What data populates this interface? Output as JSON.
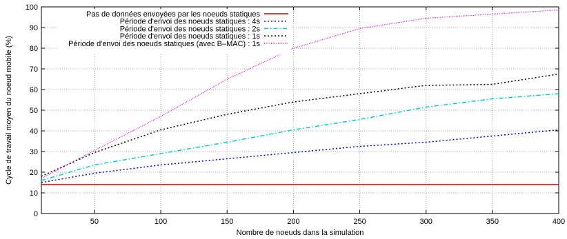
{
  "chart_data": {
    "type": "line",
    "title": "",
    "xlabel": "Nombre de noeuds dans la simulation",
    "ylabel": "Cycle de travail moyen du noeud mobile (%)",
    "xlim": [
      10,
      400
    ],
    "ylim": [
      0,
      100
    ],
    "xticks": [
      50,
      100,
      150,
      200,
      250,
      300,
      350,
      400
    ],
    "yticks": [
      0,
      10,
      20,
      30,
      40,
      50,
      60,
      70,
      80,
      90,
      100
    ],
    "grid": true,
    "legend_position": "top-left",
    "series": [
      {
        "name": "Pas de données envoyées par les noeuds statiques",
        "color": "#cc0000",
        "dash": "solid",
        "x": [
          10,
          400
        ],
        "y": [
          14,
          14
        ]
      },
      {
        "name": "Période d'envoi des noeuds statiques : 4s",
        "color": "#0000cc",
        "dash": "dotted",
        "x": [
          10,
          50,
          100,
          150,
          200,
          250,
          300,
          350,
          400
        ],
        "y": [
          15,
          19.5,
          23.5,
          26.5,
          29.5,
          32.5,
          34.5,
          37.5,
          40.5
        ]
      },
      {
        "name": "Période d'envoi des noeuds statiques : 2s",
        "color": "#00cccc",
        "dash": "dashdot",
        "x": [
          10,
          50,
          100,
          150,
          200,
          250,
          300,
          350,
          400
        ],
        "y": [
          16,
          23.5,
          29,
          34.5,
          40.5,
          45.5,
          51.5,
          55.5,
          58
        ]
      },
      {
        "name": "Période d'envoi des noeuds statiques : 1s",
        "color": "#000000",
        "dash": "dotted",
        "x": [
          10,
          50,
          100,
          150,
          200,
          250,
          300,
          350,
          400
        ],
        "y": [
          18,
          29.5,
          40.5,
          48,
          54,
          58,
          62,
          62.5,
          67.5
        ]
      },
      {
        "name": "Période d'envoi des noeuds statiques (avec B–MAC) : 1s",
        "color": "#dd00dd",
        "dash": "finedot",
        "x": [
          10,
          50,
          100,
          150,
          200,
          250,
          300,
          350,
          400
        ],
        "y": [
          17,
          30.5,
          47,
          65,
          80,
          89.5,
          94.5,
          96.5,
          98.5
        ]
      }
    ]
  }
}
